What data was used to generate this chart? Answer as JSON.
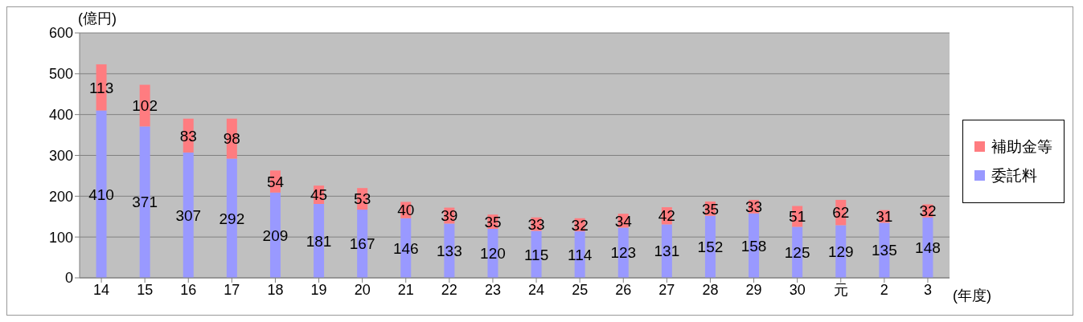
{
  "chart_data": {
    "type": "bar",
    "stacked": true,
    "ylabel": "(億円)",
    "xlabel": "(年度)",
    "categories": [
      "14",
      "15",
      "16",
      "17",
      "18",
      "19",
      "20",
      "21",
      "22",
      "23",
      "24",
      "25",
      "26",
      "27",
      "28",
      "29",
      "30",
      "元",
      "2",
      "3"
    ],
    "series": [
      {
        "name": "委託料",
        "color": "#9999ff",
        "values": [
          410,
          371,
          307,
          292,
          209,
          181,
          167,
          146,
          133,
          120,
          115,
          114,
          123,
          131,
          152,
          158,
          125,
          129,
          135,
          148
        ]
      },
      {
        "name": "補助金等",
        "color": "#ff7c80",
        "values": [
          113,
          102,
          83,
          98,
          54,
          45,
          53,
          40,
          39,
          35,
          33,
          32,
          34,
          42,
          35,
          33,
          51,
          62,
          31,
          32
        ]
      }
    ],
    "ylim": [
      0,
      600
    ],
    "yticks": [
      0,
      100,
      200,
      300,
      400,
      500,
      600
    ],
    "grid": "y",
    "legend": "right",
    "data_labels": true
  }
}
